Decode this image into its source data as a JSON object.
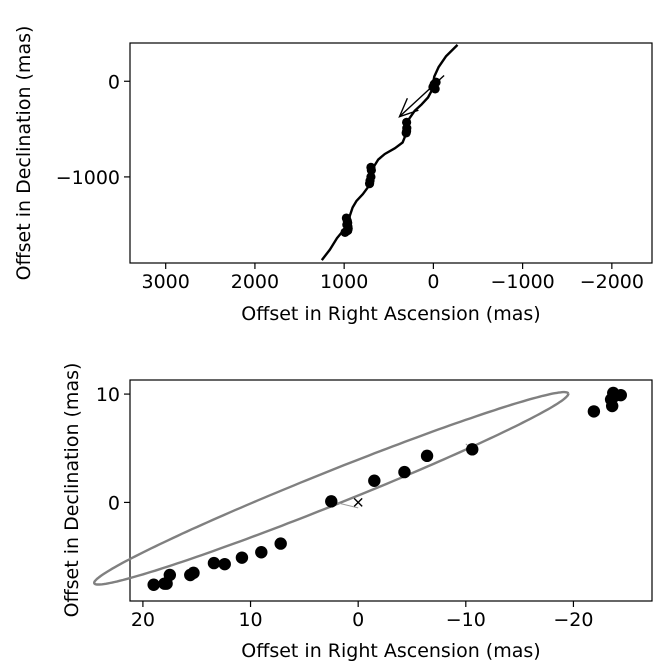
{
  "chart_data": [
    {
      "type": "line",
      "xlabel": "Offset in Right Ascension (mas)",
      "ylabel": "Offset in Declination (mas)",
      "xlim": [
        3400,
        -2450
      ],
      "ylim": [
        -1900,
        400
      ],
      "x_ticks": [
        3000,
        2000,
        1000,
        0,
        -1000,
        -2000
      ],
      "x_tick_labels": [
        "3000",
        "2000",
        "1000",
        "0",
        "−1000",
        "−2000"
      ],
      "y_ticks": [
        0,
        -1000
      ],
      "y_tick_labels": [
        "0",
        "−1000"
      ],
      "track": {
        "name": "",
        "color": "#000000",
        "points": [
          [
            1250,
            -1870
          ],
          [
            1160,
            -1760
          ],
          [
            1080,
            -1640
          ],
          [
            1010,
            -1560
          ],
          [
            955,
            -1470
          ],
          [
            935,
            -1400
          ],
          [
            905,
            -1320
          ],
          [
            860,
            -1250
          ],
          [
            790,
            -1180
          ],
          [
            735,
            -1110
          ],
          [
            705,
            -1030
          ],
          [
            690,
            -960
          ],
          [
            665,
            -890
          ],
          [
            620,
            -820
          ],
          [
            545,
            -760
          ],
          [
            430,
            -700
          ],
          [
            345,
            -640
          ],
          [
            310,
            -560
          ],
          [
            295,
            -470
          ],
          [
            270,
            -390
          ],
          [
            210,
            -310
          ],
          [
            130,
            -240
          ],
          [
            60,
            -170
          ],
          [
            20,
            -100
          ],
          [
            5,
            -30
          ],
          [
            -10,
            50
          ],
          [
            -60,
            150
          ],
          [
            -140,
            260
          ],
          [
            -270,
            380
          ]
        ]
      },
      "points": [
        [
          975,
          -1430
        ],
        [
          965,
          -1460
        ],
        [
          960,
          -1480
        ],
        [
          958,
          -1520
        ],
        [
          960,
          -1560
        ],
        [
          990,
          -1580
        ],
        [
          955,
          -1540
        ],
        [
          970,
          -1500
        ],
        [
          700,
          -900
        ],
        [
          695,
          -930
        ],
        [
          700,
          -1000
        ],
        [
          710,
          -1040
        ],
        [
          715,
          -1070
        ],
        [
          300,
          -430
        ],
        [
          298,
          -490
        ],
        [
          305,
          -540
        ],
        [
          300,
          -520
        ],
        [
          -10,
          -30
        ],
        [
          -20,
          -80
        ],
        [
          5,
          -60
        ],
        [
          -30,
          -10
        ]
      ],
      "arrow": {
        "from": [
          -120,
          60
        ],
        "to": [
          380,
          -370
        ]
      }
    },
    {
      "type": "scatter",
      "xlabel": "Offset in Right Ascension (mas)",
      "ylabel": "Offset in Declination (mas)",
      "xlim": [
        21.2,
        -27.3
      ],
      "ylim": [
        -9.1,
        11.3
      ],
      "x_ticks": [
        20,
        10,
        0,
        -10,
        -20
      ],
      "x_tick_labels": [
        "20",
        "10",
        "0",
        "−10",
        "−20"
      ],
      "y_ticks": [
        10,
        0
      ],
      "y_tick_labels": [
        "10",
        "0"
      ],
      "center_marker": {
        "x": 0,
        "y": 0,
        "symbol": "×"
      },
      "orbit": {
        "color": "#808080",
        "center": [
          -2.5,
          1.3
        ],
        "semi_major": 23.7,
        "semi_minor": 1.55,
        "angle_deg": 21.7
      },
      "points": [
        [
          19.0,
          -7.6
        ],
        [
          18.0,
          -7.5
        ],
        [
          17.8,
          -7.5
        ],
        [
          17.5,
          -6.7
        ],
        [
          15.6,
          -6.7
        ],
        [
          15.3,
          -6.5
        ],
        [
          13.4,
          -5.6
        ],
        [
          12.4,
          -5.7
        ],
        [
          10.8,
          -5.1
        ],
        [
          9.0,
          -4.6
        ],
        [
          7.2,
          -3.8
        ],
        [
          2.5,
          0.1
        ],
        [
          -1.5,
          2.0
        ],
        [
          -4.3,
          2.8
        ],
        [
          -6.4,
          4.3
        ],
        [
          -10.6,
          4.9
        ],
        [
          -21.9,
          8.4
        ],
        [
          -23.5,
          9.5
        ],
        [
          -23.6,
          8.9
        ],
        [
          -23.8,
          9.8
        ],
        [
          -23.7,
          10.1
        ],
        [
          -24.4,
          9.9
        ]
      ],
      "residual_links": [
        [
          [
            2.5,
            0.1
          ],
          [
            0.0,
            -0.5
          ]
        ],
        [
          [
            -6.4,
            4.3
          ],
          [
            -6.0,
            3.9
          ]
        ],
        [
          [
            -10.6,
            4.9
          ],
          [
            -10.0,
            5.4
          ]
        ],
        [
          [
            -21.9,
            8.4
          ],
          [
            -22.2,
            8.7
          ]
        ],
        [
          [
            13.4,
            -5.6
          ],
          [
            13.0,
            -5.3
          ]
        ],
        [
          [
            7.2,
            -3.8
          ],
          [
            7.5,
            -3.5
          ]
        ]
      ]
    }
  ]
}
